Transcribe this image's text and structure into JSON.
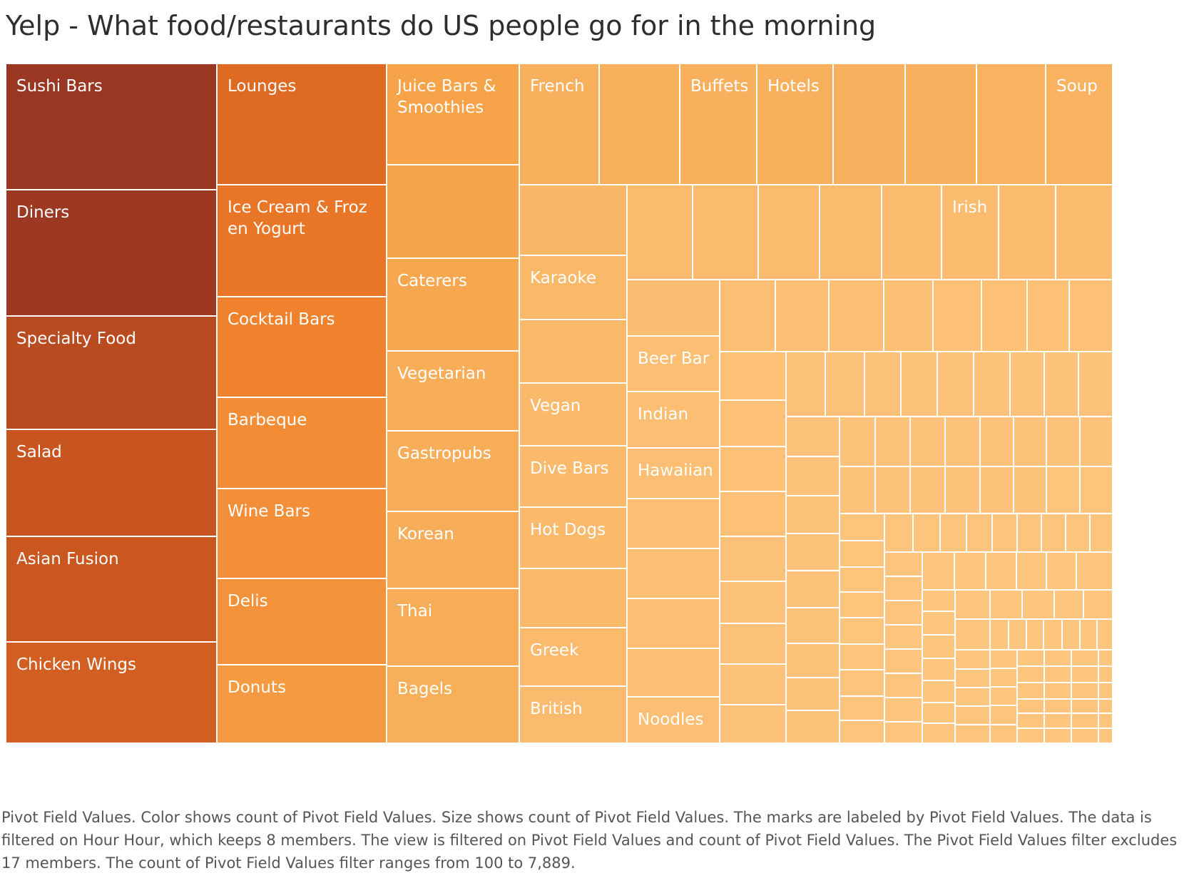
{
  "title": "Yelp - What food/restaurants do US people go for in the morning",
  "caption": "Pivot Field Values.  Color shows count of Pivot Field Values.  Size shows count of Pivot Field Values.  The marks are labeled by Pivot Field Values. The data is filtered on Hour Hour, which keeps 8 members. The view is filtered on Pivot Field Values and count of Pivot Field Values. The Pivot Field Values filter excludes 17 members. The count of Pivot Field Values filter ranges from 100 to 7,889.",
  "chart_data": {
    "type": "treemap",
    "measure": "count of Pivot Field Values",
    "color_scale": {
      "low": "#fdc57e",
      "mid": "#ee7a27",
      "high": "#9a3722"
    },
    "value_range": [
      100,
      7889
    ],
    "labeled_items": [
      {
        "name": "Sushi Bars",
        "value": 1060
      },
      {
        "name": "Diners",
        "value": 1050
      },
      {
        "name": "Specialty Food",
        "value": 950
      },
      {
        "name": "Salad",
        "value": 890
      },
      {
        "name": "Asian Fusion",
        "value": 880
      },
      {
        "name": "Chicken Wings",
        "value": 840
      },
      {
        "name": "Lounges",
        "value": 780
      },
      {
        "name": "Ice Cream & Frozen Yogurt",
        "value": 720
      },
      {
        "name": "Cocktail Bars",
        "value": 650
      },
      {
        "name": "Barbeque",
        "value": 590
      },
      {
        "name": "Wine Bars",
        "value": 580
      },
      {
        "name": "Delis",
        "value": 560
      },
      {
        "name": "Donuts",
        "value": 510
      },
      {
        "name": "Juice Bars & Smoothies",
        "value": 460
      },
      {
        "name": "Caterers",
        "value": 420
      },
      {
        "name": "Vegetarian",
        "value": 360
      },
      {
        "name": "Gastropubs",
        "value": 360
      },
      {
        "name": "Korean",
        "value": 350
      },
      {
        "name": "Thai",
        "value": 350
      },
      {
        "name": "Bagels",
        "value": 340
      },
      {
        "name": "French",
        "value": 330
      },
      {
        "name": "Buffets",
        "value": 320
      },
      {
        "name": "Hotels",
        "value": 320
      },
      {
        "name": "Soup",
        "value": 300
      },
      {
        "name": "Karaoke",
        "value": 240
      },
      {
        "name": "Vegan",
        "value": 230
      },
      {
        "name": "Dive Bars",
        "value": 230
      },
      {
        "name": "Hot Dogs",
        "value": 230
      },
      {
        "name": "Greek",
        "value": 220
      },
      {
        "name": "British",
        "value": 210
      },
      {
        "name": "Irish",
        "value": 200
      },
      {
        "name": "Beer Bar",
        "value": 180
      },
      {
        "name": "Indian",
        "value": 180
      },
      {
        "name": "Hawaiian",
        "value": 180
      },
      {
        "name": "Noodles",
        "value": 170
      }
    ]
  }
}
